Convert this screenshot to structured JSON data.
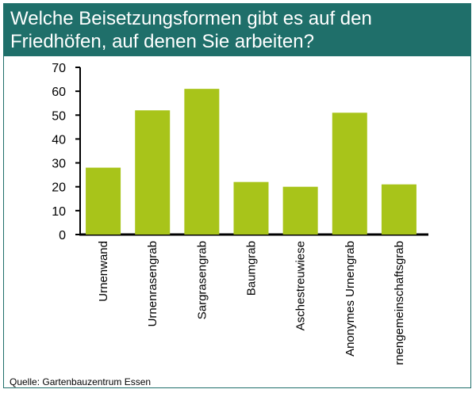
{
  "header": {
    "title_line1": "Welche Beisetzungsformen gibt es auf den",
    "title_line2": "Friedhöfen, auf denen Sie arbeiten?"
  },
  "footer": {
    "source": "Quelle: Gartenbauzentrum Essen"
  },
  "colors": {
    "title_background": "#1f6f6a",
    "bar": "#a8c41a",
    "axis": "#000000"
  },
  "chart_data": {
    "type": "bar",
    "title": "Welche Beisetzungsformen gibt es auf den Friedhöfen, auf denen Sie arbeiten?",
    "xlabel": "",
    "ylabel": "",
    "categories": [
      "Urnenwand",
      "Urnenrasengrab",
      "Sargrasengrab",
      "Baumgrab",
      "Aschestreuwiese",
      "Anonymes Urnengrab",
      "Urnengemeinschaftsgrab"
    ],
    "values": [
      28,
      52,
      61,
      22,
      20,
      51,
      21
    ],
    "ylim": [
      0,
      70
    ],
    "yticks": [
      0,
      10,
      20,
      30,
      40,
      50,
      60,
      70
    ],
    "grid": false,
    "legend": "none"
  }
}
